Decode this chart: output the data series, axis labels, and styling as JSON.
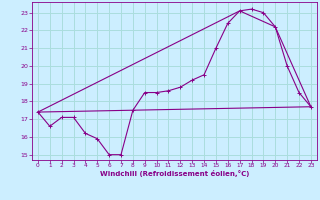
{
  "background_color": "#cceeff",
  "grid_color": "#aadddd",
  "line_color": "#880088",
  "xlabel": "Windchill (Refroidissement éolien,°C)",
  "xlim": [
    -0.5,
    23.5
  ],
  "ylim": [
    14.7,
    23.6
  ],
  "yticks": [
    15,
    16,
    17,
    18,
    19,
    20,
    21,
    22,
    23
  ],
  "xticks": [
    0,
    1,
    2,
    3,
    4,
    5,
    6,
    7,
    8,
    9,
    10,
    11,
    12,
    13,
    14,
    15,
    16,
    17,
    18,
    19,
    20,
    21,
    22,
    23
  ],
  "line1_x": [
    0,
    1,
    2,
    3,
    4,
    5,
    6,
    7,
    8,
    9,
    10,
    11,
    12,
    13,
    14,
    15,
    16,
    17,
    18,
    19,
    20,
    21,
    22,
    23
  ],
  "line1_y": [
    17.4,
    16.6,
    17.1,
    17.1,
    16.2,
    15.9,
    15.0,
    15.0,
    17.5,
    18.5,
    18.5,
    18.6,
    18.8,
    19.2,
    19.5,
    21.0,
    22.4,
    23.1,
    23.2,
    23.0,
    22.2,
    20.0,
    18.5,
    17.7
  ],
  "line2_x": [
    0,
    23
  ],
  "line2_y": [
    17.4,
    17.7
  ],
  "line3_x": [
    0,
    17,
    20,
    23
  ],
  "line3_y": [
    17.4,
    23.1,
    22.2,
    17.7
  ]
}
